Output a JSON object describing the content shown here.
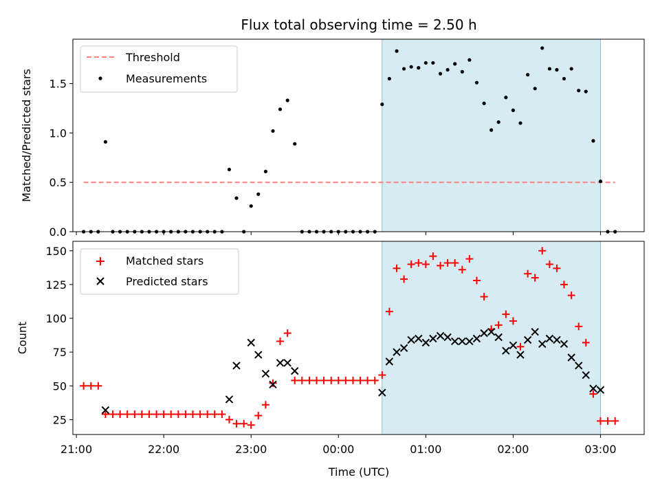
{
  "chart_data": [
    {
      "type": "scatter",
      "title": "Flux total observing time = 2.50 h",
      "ylabel": "Matched/Predicted stars",
      "xlabel": "",
      "x_unit": "hours after 21:00 UTC",
      "xlim": [
        -0.04,
        6.5
      ],
      "ylim": [
        0,
        1.95
      ],
      "yticks": [
        0.0,
        0.5,
        1.0,
        1.5
      ],
      "ytick_labels": [
        "0.0",
        "0.5",
        "1.0",
        "1.5"
      ],
      "shaded_interval": [
        3.5,
        6.0
      ],
      "shade_color": "#add8e6",
      "legend_position": "upper-left",
      "threshold": {
        "name": "Threshold",
        "value": 0.5,
        "x_range": [
          0.083,
          6.167
        ],
        "color": "#ff0000",
        "style": "dashed"
      },
      "series": [
        {
          "name": "Measurements",
          "color": "#000000",
          "points": [
            [
              0.083,
              0
            ],
            [
              0.167,
              0
            ],
            [
              0.25,
              0
            ],
            [
              0.333,
              0.91
            ],
            [
              0.417,
              0
            ],
            [
              0.5,
              0
            ],
            [
              0.583,
              0
            ],
            [
              0.667,
              0
            ],
            [
              0.75,
              0
            ],
            [
              0.833,
              0
            ],
            [
              0.917,
              0
            ],
            [
              1.0,
              0
            ],
            [
              1.083,
              0
            ],
            [
              1.167,
              0
            ],
            [
              1.25,
              0
            ],
            [
              1.333,
              0
            ],
            [
              1.417,
              0
            ],
            [
              1.5,
              0
            ],
            [
              1.583,
              0
            ],
            [
              1.667,
              0
            ],
            [
              1.75,
              0.63
            ],
            [
              1.833,
              0.34
            ],
            [
              1.917,
              0
            ],
            [
              2.0,
              0.26
            ],
            [
              2.083,
              0.38
            ],
            [
              2.167,
              0.61
            ],
            [
              2.25,
              1.02
            ],
            [
              2.333,
              1.24
            ],
            [
              2.417,
              1.33
            ],
            [
              2.5,
              0.89
            ],
            [
              2.583,
              0
            ],
            [
              2.667,
              0
            ],
            [
              2.75,
              0
            ],
            [
              2.833,
              0
            ],
            [
              2.917,
              0
            ],
            [
              3.0,
              0
            ],
            [
              3.083,
              0
            ],
            [
              3.167,
              0
            ],
            [
              3.25,
              0
            ],
            [
              3.333,
              0
            ],
            [
              3.417,
              0
            ],
            [
              3.5,
              1.29
            ],
            [
              3.583,
              1.55
            ],
            [
              3.667,
              1.83
            ],
            [
              3.75,
              1.65
            ],
            [
              3.833,
              1.67
            ],
            [
              3.917,
              1.66
            ],
            [
              4.0,
              1.71
            ],
            [
              4.083,
              1.71
            ],
            [
              4.167,
              1.6
            ],
            [
              4.25,
              1.64
            ],
            [
              4.333,
              1.7
            ],
            [
              4.417,
              1.62
            ],
            [
              4.5,
              1.74
            ],
            [
              4.583,
              1.51
            ],
            [
              4.667,
              1.3
            ],
            [
              4.75,
              1.03
            ],
            [
              4.833,
              1.11
            ],
            [
              4.917,
              1.36
            ],
            [
              5.0,
              1.23
            ],
            [
              5.083,
              1.1
            ],
            [
              5.167,
              1.59
            ],
            [
              5.25,
              1.45
            ],
            [
              5.333,
              1.86
            ],
            [
              5.417,
              1.65
            ],
            [
              5.5,
              1.64
            ],
            [
              5.583,
              1.55
            ],
            [
              5.667,
              1.65
            ],
            [
              5.75,
              1.43
            ],
            [
              5.833,
              1.42
            ],
            [
              5.917,
              0.92
            ],
            [
              6.0,
              0.51
            ],
            [
              6.083,
              0
            ],
            [
              6.167,
              0
            ]
          ]
        }
      ]
    },
    {
      "type": "scatter",
      "title": "",
      "ylabel": "Count",
      "xlabel": "Time (UTC)",
      "x_unit": "hours after 21:00 UTC",
      "xlim": [
        -0.04,
        6.5
      ],
      "ylim": [
        14,
        157
      ],
      "yticks": [
        25,
        50,
        75,
        100,
        125,
        150
      ],
      "ytick_labels": [
        "25",
        "50",
        "75",
        "100",
        "125",
        "150"
      ],
      "xticks": [
        0,
        1,
        2,
        3,
        4,
        5,
        6
      ],
      "xtick_labels": [
        "21:00",
        "22:00",
        "23:00",
        "00:00",
        "01:00",
        "02:00",
        "03:00"
      ],
      "shaded_interval": [
        3.5,
        6.0
      ],
      "shade_color": "#add8e6",
      "legend_position": "upper-left",
      "series": [
        {
          "name": "Matched stars",
          "marker": "plus",
          "color": "#ff0000",
          "points": [
            [
              0.083,
              50
            ],
            [
              0.167,
              50
            ],
            [
              0.25,
              50
            ],
            [
              0.333,
              29
            ],
            [
              0.417,
              29
            ],
            [
              0.5,
              29
            ],
            [
              0.583,
              29
            ],
            [
              0.667,
              29
            ],
            [
              0.75,
              29
            ],
            [
              0.833,
              29
            ],
            [
              0.917,
              29
            ],
            [
              1.0,
              29
            ],
            [
              1.083,
              29
            ],
            [
              1.167,
              29
            ],
            [
              1.25,
              29
            ],
            [
              1.333,
              29
            ],
            [
              1.417,
              29
            ],
            [
              1.5,
              29
            ],
            [
              1.583,
              29
            ],
            [
              1.667,
              29
            ],
            [
              1.75,
              25
            ],
            [
              1.833,
              22
            ],
            [
              1.917,
              22
            ],
            [
              2.0,
              21
            ],
            [
              2.083,
              28
            ],
            [
              2.167,
              36
            ],
            [
              2.25,
              52
            ],
            [
              2.333,
              83
            ],
            [
              2.417,
              89
            ],
            [
              2.5,
              54
            ],
            [
              2.583,
              54
            ],
            [
              2.667,
              54
            ],
            [
              2.75,
              54
            ],
            [
              2.833,
              54
            ],
            [
              2.917,
              54
            ],
            [
              3.0,
              54
            ],
            [
              3.083,
              54
            ],
            [
              3.167,
              54
            ],
            [
              3.25,
              54
            ],
            [
              3.333,
              54
            ],
            [
              3.417,
              54
            ],
            [
              3.5,
              58
            ],
            [
              3.583,
              105
            ],
            [
              3.667,
              137
            ],
            [
              3.75,
              129
            ],
            [
              3.833,
              140
            ],
            [
              3.917,
              141
            ],
            [
              4.0,
              140
            ],
            [
              4.083,
              146
            ],
            [
              4.167,
              139
            ],
            [
              4.25,
              141
            ],
            [
              4.333,
              141
            ],
            [
              4.417,
              136
            ],
            [
              4.5,
              144
            ],
            [
              4.583,
              128
            ],
            [
              4.667,
              116
            ],
            [
              4.75,
              92
            ],
            [
              4.833,
              95
            ],
            [
              4.917,
              103
            ],
            [
              5.0,
              98
            ],
            [
              5.083,
              79
            ],
            [
              5.167,
              133
            ],
            [
              5.25,
              130
            ],
            [
              5.333,
              150
            ],
            [
              5.417,
              140
            ],
            [
              5.5,
              137
            ],
            [
              5.583,
              125
            ],
            [
              5.667,
              117
            ],
            [
              5.75,
              94
            ],
            [
              5.833,
              82
            ],
            [
              5.917,
              44
            ],
            [
              6.0,
              24
            ],
            [
              6.083,
              24
            ],
            [
              6.167,
              24
            ]
          ]
        },
        {
          "name": "Predicted stars",
          "marker": "x",
          "color": "#000000",
          "points": [
            [
              0.333,
              32
            ],
            [
              1.75,
              40
            ],
            [
              1.833,
              65
            ],
            [
              2.0,
              82
            ],
            [
              2.083,
              73
            ],
            [
              2.167,
              59
            ],
            [
              2.25,
              51
            ],
            [
              2.333,
              67
            ],
            [
              2.417,
              67
            ],
            [
              2.5,
              61
            ],
            [
              3.5,
              45
            ],
            [
              3.583,
              68
            ],
            [
              3.667,
              75
            ],
            [
              3.75,
              78
            ],
            [
              3.833,
              84
            ],
            [
              3.917,
              85
            ],
            [
              4.0,
              82
            ],
            [
              4.083,
              85
            ],
            [
              4.167,
              87
            ],
            [
              4.25,
              86
            ],
            [
              4.333,
              83
            ],
            [
              4.417,
              83
            ],
            [
              4.5,
              83
            ],
            [
              4.583,
              85
            ],
            [
              4.667,
              89
            ],
            [
              4.75,
              90
            ],
            [
              4.833,
              86
            ],
            [
              4.917,
              76
            ],
            [
              5.0,
              80
            ],
            [
              5.083,
              73
            ],
            [
              5.167,
              84
            ],
            [
              5.25,
              90
            ],
            [
              5.333,
              81
            ],
            [
              5.417,
              85
            ],
            [
              5.5,
              84
            ],
            [
              5.583,
              81
            ],
            [
              5.667,
              71
            ],
            [
              5.75,
              65
            ],
            [
              5.833,
              58
            ],
            [
              5.917,
              48
            ],
            [
              6.0,
              47
            ]
          ]
        }
      ]
    }
  ]
}
